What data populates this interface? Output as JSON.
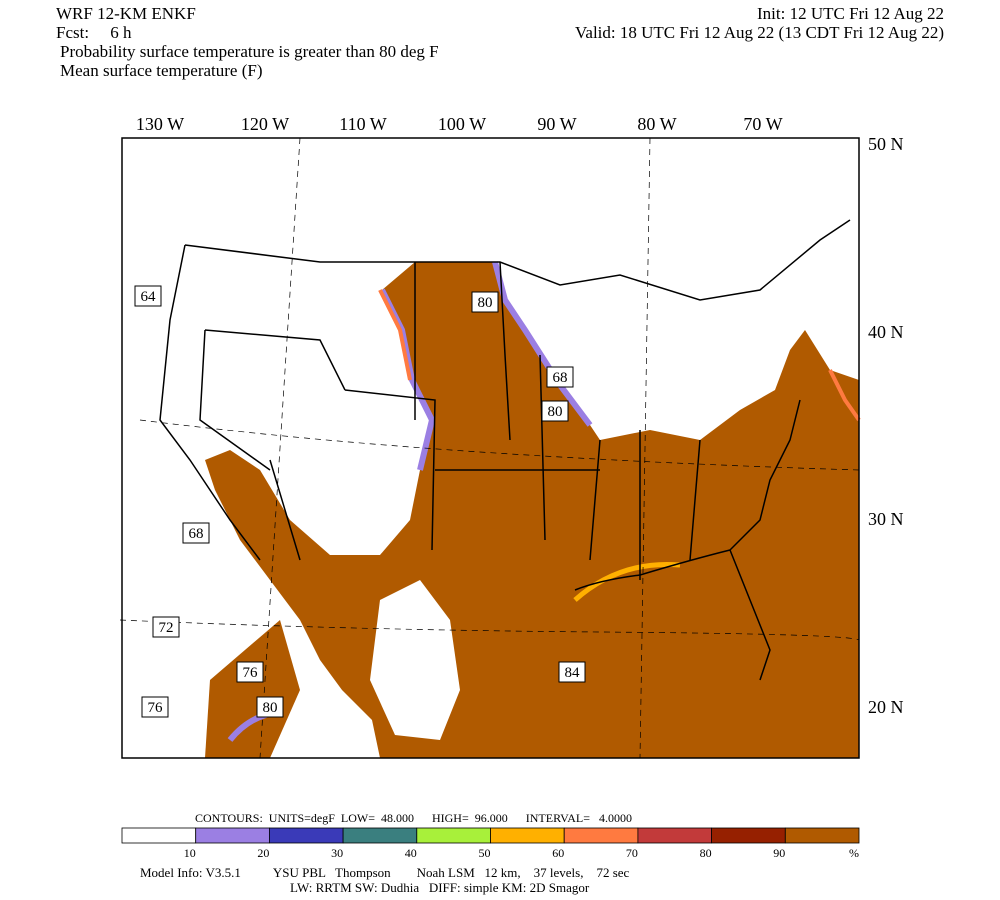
{
  "header": {
    "model": "WRF 12-KM ENKF",
    "init": "Init: 12 UTC Fri 12 Aug 22",
    "forecast": "Fcst:     6 h",
    "valid": "Valid: 18 UTC Fri 12 Aug 22 (13 CDT Fri 12 Aug 22)",
    "field1": "Probability surface temperature is greater than 80 deg F",
    "field2": "Mean surface temperature (F)"
  },
  "map": {
    "longitude_labels": [
      "130 W",
      "120 W",
      "110 W",
      "100 W",
      "90 W",
      "80 W",
      "70 W"
    ],
    "latitude_labels": [
      "50 N",
      "40 N",
      "30 N",
      "20 N"
    ],
    "contour_labels": [
      "64",
      "80",
      "68",
      "80",
      "68",
      "72",
      "76",
      "84",
      "76",
      "80"
    ]
  },
  "colorbar": {
    "contours": "CONTOURS:  UNITS=degF  LOW=  48.000      HIGH=  96.000      INTERVAL=   4.0000",
    "colors": [
      "#ffffff",
      "#9b7fe3",
      "#3a3ab8",
      "#3a7f7f",
      "#a8f03a",
      "#ffb000",
      "#ff7a40",
      "#c23a3a",
      "#962000",
      "#b05a00"
    ],
    "ticks": [
      10,
      20,
      30,
      40,
      50,
      60,
      70,
      80,
      90
    ],
    "unit": "%"
  },
  "footer": {
    "line1": "Model Info: V3.5.1          YSU PBL   Thompson        Noah LSM   12 km,    37 levels,    72 sec",
    "line2": "LW: RRTM SW: Dudhia   DIFF: simple KM: 2D Smagor"
  }
}
